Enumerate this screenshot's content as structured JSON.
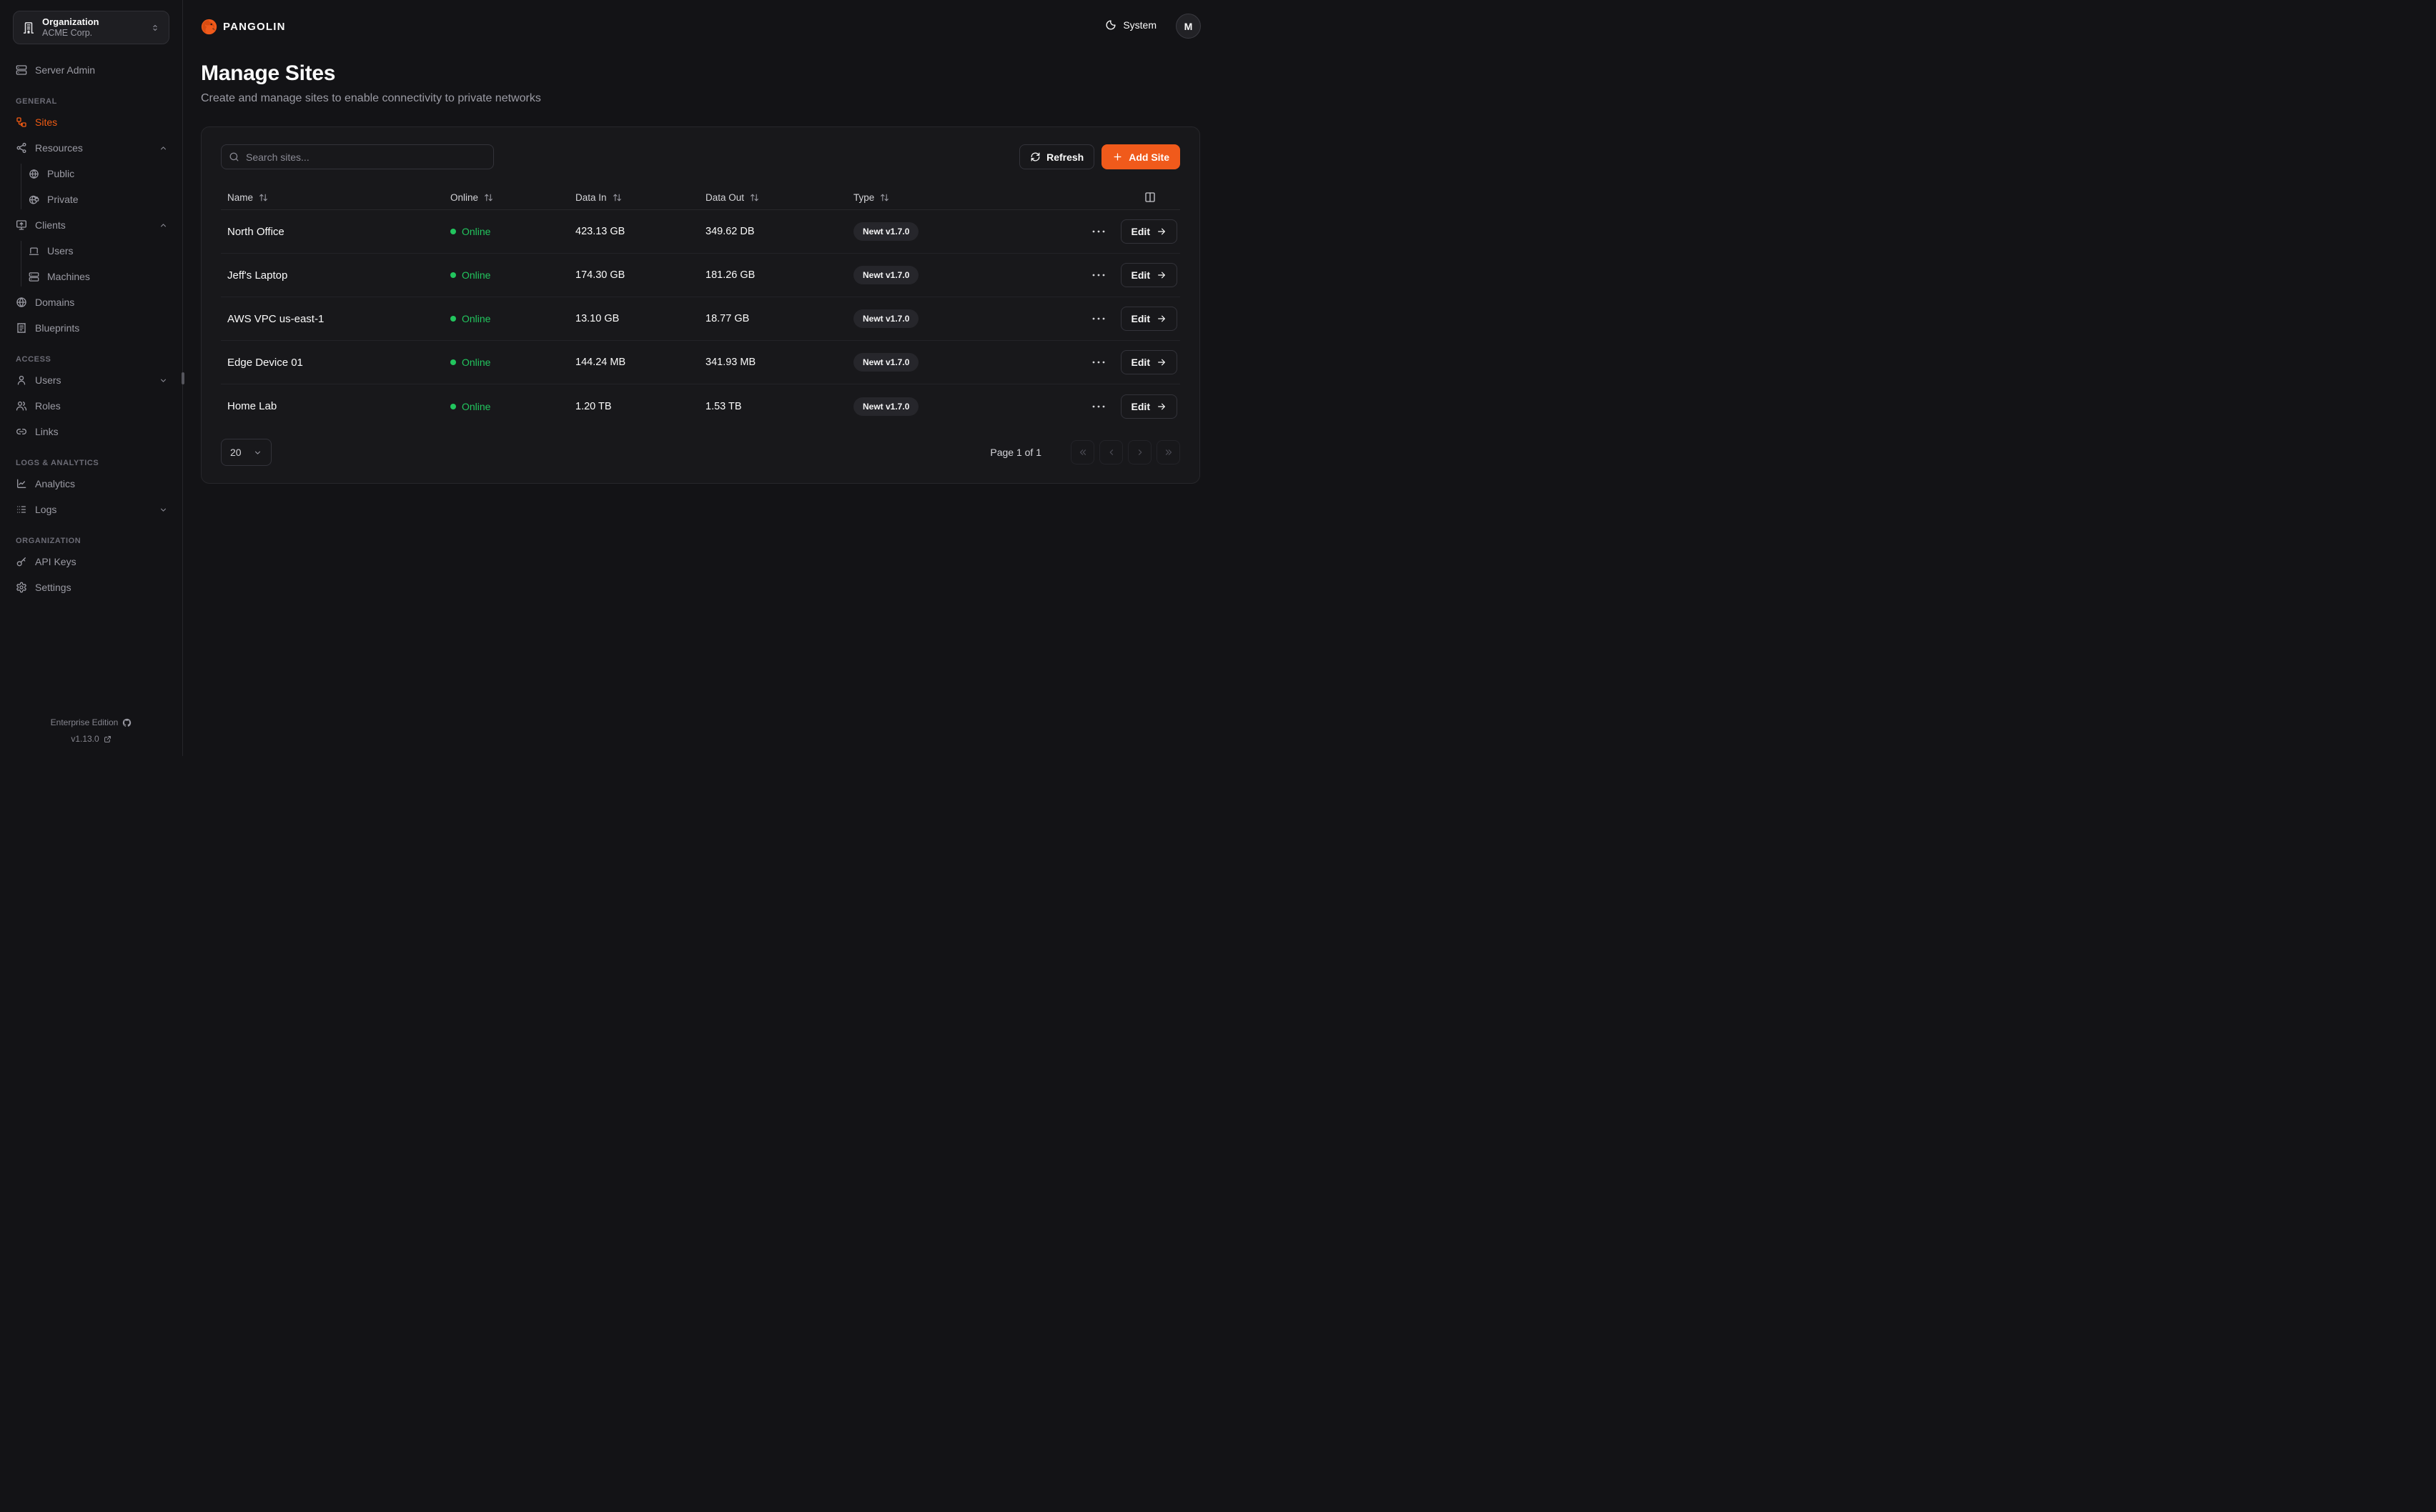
{
  "org_selector": {
    "label": "Organization",
    "value": "ACME Corp."
  },
  "sidebar": {
    "top_items": [
      {
        "label": "Server Admin",
        "icon": "server"
      }
    ],
    "sections": [
      {
        "label": "GENERAL",
        "items": [
          {
            "label": "Sites",
            "icon": "workflow",
            "active": true
          },
          {
            "label": "Resources",
            "icon": "share2",
            "chevron": "up"
          },
          {
            "label": "Public",
            "icon": "globe",
            "sub": true
          },
          {
            "label": "Private",
            "icon": "globe-lock",
            "sub": true
          },
          {
            "label": "Clients",
            "icon": "monitor-up",
            "chevron": "up"
          },
          {
            "label": "Users",
            "icon": "laptop",
            "sub": true
          },
          {
            "label": "Machines",
            "icon": "server",
            "sub": true
          },
          {
            "label": "Domains",
            "icon": "globe"
          },
          {
            "label": "Blueprints",
            "icon": "receipt"
          }
        ]
      },
      {
        "label": "ACCESS",
        "items": [
          {
            "label": "Users",
            "icon": "user",
            "chevron": "down"
          },
          {
            "label": "Roles",
            "icon": "users"
          },
          {
            "label": "Links",
            "icon": "link"
          }
        ]
      },
      {
        "label": "LOGS & ANALYTICS",
        "items": [
          {
            "label": "Analytics",
            "icon": "chart-line"
          },
          {
            "label": "Logs",
            "icon": "logs",
            "chevron": "down"
          }
        ]
      },
      {
        "label": "ORGANIZATION",
        "items": [
          {
            "label": "API Keys",
            "icon": "key"
          },
          {
            "label": "Settings",
            "icon": "gear"
          }
        ]
      }
    ],
    "footer": {
      "edition": "Enterprise Edition",
      "version": "v1.13.0"
    }
  },
  "header": {
    "brand": "PANGOLIN",
    "theme_label": "System",
    "avatar_initial": "M"
  },
  "page": {
    "title": "Manage Sites",
    "subtitle": "Create and manage sites to enable connectivity to private networks"
  },
  "toolbar": {
    "search_placeholder": "Search sites...",
    "refresh_label": "Refresh",
    "add_site_label": "Add Site"
  },
  "table": {
    "columns": [
      "Name",
      "Online",
      "Data In",
      "Data Out",
      "Type"
    ],
    "edit_label": "Edit",
    "rows": [
      {
        "name": "North Office",
        "status": "Online",
        "data_in": "423.13 GB",
        "data_out": "349.62 DB",
        "type": "Newt v1.7.0"
      },
      {
        "name": "Jeff's Laptop",
        "status": "Online",
        "data_in": "174.30 GB",
        "data_out": "181.26 GB",
        "type": "Newt v1.7.0"
      },
      {
        "name": "AWS VPC us-east-1",
        "status": "Online",
        "data_in": "13.10 GB",
        "data_out": "18.77 GB",
        "type": "Newt v1.7.0"
      },
      {
        "name": "Edge Device 01",
        "status": "Online",
        "data_in": "144.24 MB",
        "data_out": "341.93 MB",
        "type": "Newt v1.7.0"
      },
      {
        "name": "Home Lab",
        "status": "Online",
        "data_in": "1.20 TB",
        "data_out": "1.53 TB",
        "type": "Newt v1.7.0"
      }
    ]
  },
  "pagination": {
    "page_size": "20",
    "page_info": "Page 1 of 1"
  },
  "colors": {
    "accent": "#f05a1b",
    "online_green": "#22c55e"
  }
}
